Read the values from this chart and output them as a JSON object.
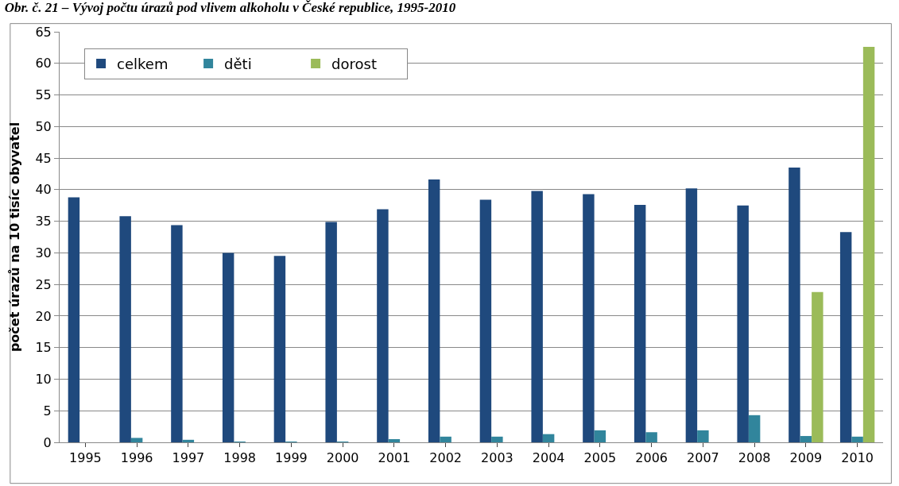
{
  "chart_data": {
    "type": "bar",
    "title": "Obr. č. 21 – Vývoj počtu úrazů pod vlivem alkoholu v České republice, 1995-2010",
    "ylabel": "počet úrazů na 10 tisíc obyvatel",
    "categories": [
      "1995",
      "1996",
      "1997",
      "1998",
      "1999",
      "2000",
      "2001",
      "2002",
      "2003",
      "2004",
      "2005",
      "2006",
      "2007",
      "2008",
      "2009",
      "2010"
    ],
    "series": [
      {
        "name": "celkem",
        "color": "#1f497d",
        "values": [
          38.8,
          35.8,
          34.4,
          30.0,
          29.5,
          34.9,
          36.9,
          41.6,
          38.4,
          39.8,
          39.3,
          37.6,
          40.2,
          37.5,
          43.5,
          33.3
        ]
      },
      {
        "name": "děti",
        "color": "#31859c",
        "values": [
          null,
          0.7,
          0.4,
          0.1,
          0.1,
          0.1,
          0.5,
          0.9,
          0.9,
          1.3,
          1.9,
          1.6,
          1.9,
          4.3,
          1.0,
          0.9
        ]
      },
      {
        "name": "dorost",
        "color": "#9bbb59",
        "values": [
          null,
          null,
          null,
          null,
          null,
          null,
          null,
          null,
          null,
          null,
          null,
          null,
          null,
          null,
          23.8,
          62.6
        ]
      }
    ],
    "ylim": [
      0,
      65
    ],
    "yticks": [
      0,
      5,
      10,
      15,
      20,
      25,
      30,
      35,
      40,
      45,
      50,
      55,
      60,
      65
    ],
    "grid": "y",
    "legend": "top left"
  }
}
